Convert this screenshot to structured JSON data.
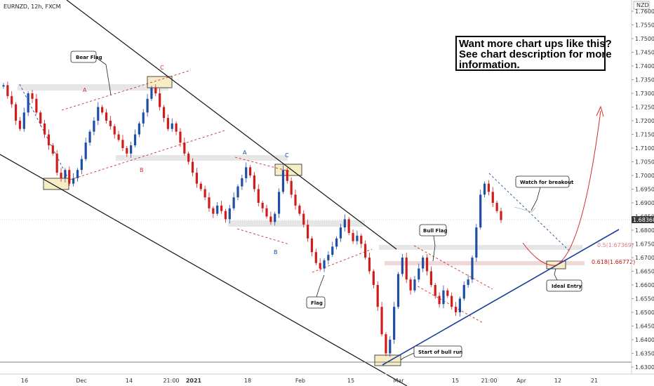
{
  "header": {
    "symbol_label": "EURNZD, 12h, FXCM",
    "currency_badge": "NZD"
  },
  "chart_data": {
    "type": "candlestick",
    "title": "EURNZD, 12h, FXCM",
    "y_axis": {
      "currency": "NZD",
      "ylim": [
        1.628,
        1.767
      ],
      "ticks": [
        1.63,
        1.635,
        1.64,
        1.645,
        1.65,
        1.655,
        1.66,
        1.665,
        1.67,
        1.675,
        1.68,
        1.685,
        1.69,
        1.695,
        1.7,
        1.705,
        1.71,
        1.715,
        1.72,
        1.725,
        1.73,
        1.735,
        1.74,
        1.745,
        1.75,
        1.755,
        1.76
      ]
    },
    "x_axis": {
      "tick_labels": [
        "16",
        "Dec",
        "14",
        "21:00",
        "2021",
        "18",
        "Feb",
        "15",
        "Mar",
        "15",
        "21:00",
        "Apr",
        "12",
        "21"
      ]
    },
    "last_price": "1.68368",
    "candles": [
      [
        1.7325,
        1.733
      ],
      [
        1.733,
        1.729
      ],
      [
        1.729,
        1.726
      ],
      [
        1.726,
        1.72
      ],
      [
        1.72,
        1.717
      ],
      [
        1.717,
        1.723
      ],
      [
        1.723,
        1.73
      ],
      [
        1.73,
        1.728
      ],
      [
        1.728,
        1.723
      ],
      [
        1.723,
        1.719
      ],
      [
        1.719,
        1.715
      ],
      [
        1.715,
        1.711
      ],
      [
        1.711,
        1.708
      ],
      [
        1.708,
        1.701
      ],
      [
        1.701,
        1.699
      ],
      [
        1.699,
        1.702
      ],
      [
        1.702,
        1.697
      ],
      [
        1.697,
        1.699
      ],
      [
        1.699,
        1.702
      ],
      [
        1.702,
        1.706
      ],
      [
        1.706,
        1.712
      ],
      [
        1.712,
        1.716
      ],
      [
        1.716,
        1.72
      ],
      [
        1.72,
        1.725
      ],
      [
        1.725,
        1.723
      ],
      [
        1.723,
        1.72
      ],
      [
        1.72,
        1.718
      ],
      [
        1.718,
        1.715
      ],
      [
        1.715,
        1.713
      ],
      [
        1.713,
        1.71
      ],
      [
        1.71,
        1.708
      ],
      [
        1.708,
        1.711
      ],
      [
        1.711,
        1.715
      ],
      [
        1.715,
        1.719
      ],
      [
        1.719,
        1.723
      ],
      [
        1.723,
        1.728
      ],
      [
        1.728,
        1.732
      ],
      [
        1.732,
        1.73
      ],
      [
        1.73,
        1.725
      ],
      [
        1.725,
        1.721
      ],
      [
        1.721,
        1.717
      ],
      [
        1.717,
        1.719
      ],
      [
        1.719,
        1.716
      ],
      [
        1.716,
        1.712
      ],
      [
        1.712,
        1.708
      ],
      [
        1.708,
        1.705
      ],
      [
        1.705,
        1.701
      ],
      [
        1.701,
        1.697
      ],
      [
        1.697,
        1.695
      ],
      [
        1.695,
        1.692
      ],
      [
        1.692,
        1.688
      ],
      [
        1.688,
        1.686
      ],
      [
        1.686,
        1.689
      ],
      [
        1.689,
        1.687
      ],
      [
        1.687,
        1.684
      ],
      [
        1.684,
        1.688
      ],
      [
        1.688,
        1.692
      ],
      [
        1.692,
        1.696
      ],
      [
        1.696,
        1.699
      ],
      [
        1.699,
        1.703
      ],
      [
        1.703,
        1.7
      ],
      [
        1.7,
        1.695
      ],
      [
        1.695,
        1.69
      ],
      [
        1.69,
        1.688
      ],
      [
        1.688,
        1.685
      ],
      [
        1.685,
        1.683
      ],
      [
        1.683,
        1.686
      ],
      [
        1.686,
        1.694
      ],
      [
        1.694,
        1.702
      ],
      [
        1.702,
        1.698
      ],
      [
        1.698,
        1.693
      ],
      [
        1.693,
        1.689
      ],
      [
        1.689,
        1.686
      ],
      [
        1.686,
        1.682
      ],
      [
        1.682,
        1.677
      ],
      [
        1.677,
        1.672
      ],
      [
        1.672,
        1.668
      ],
      [
        1.668,
        1.666
      ],
      [
        1.666,
        1.669
      ],
      [
        1.669,
        1.671
      ],
      [
        1.671,
        1.674
      ],
      [
        1.674,
        1.677
      ],
      [
        1.677,
        1.681
      ],
      [
        1.681,
        1.684
      ],
      [
        1.684,
        1.679
      ],
      [
        1.679,
        1.676
      ],
      [
        1.676,
        1.678
      ],
      [
        1.678,
        1.675
      ],
      [
        1.675,
        1.67
      ],
      [
        1.67,
        1.665
      ],
      [
        1.665,
        1.66
      ],
      [
        1.66,
        1.652
      ],
      [
        1.652,
        1.642
      ],
      [
        1.642,
        1.635
      ],
      [
        1.635,
        1.64
      ],
      [
        1.64,
        1.652
      ],
      [
        1.652,
        1.664
      ],
      [
        1.664,
        1.67
      ],
      [
        1.67,
        1.662
      ],
      [
        1.662,
        1.658
      ],
      [
        1.658,
        1.662
      ],
      [
        1.662,
        1.666
      ],
      [
        1.666,
        1.67
      ],
      [
        1.67,
        1.665
      ],
      [
        1.665,
        1.66
      ],
      [
        1.66,
        1.656
      ],
      [
        1.656,
        1.653
      ],
      [
        1.653,
        1.658
      ],
      [
        1.658,
        1.656
      ],
      [
        1.656,
        1.652
      ],
      [
        1.652,
        1.65
      ],
      [
        1.65,
        1.655
      ],
      [
        1.655,
        1.66
      ],
      [
        1.66,
        1.662
      ],
      [
        1.662,
        1.67
      ],
      [
        1.67,
        1.681
      ],
      [
        1.681,
        1.693
      ],
      [
        1.693,
        1.697
      ],
      [
        1.697,
        1.694
      ],
      [
        1.694,
        1.69
      ],
      [
        1.69,
        1.687
      ],
      [
        1.687,
        1.6837
      ]
    ],
    "annotations": {
      "callouts": [
        "Bear Flag",
        "Flag",
        "Bull Flag",
        "Watch for breakout",
        "Ideal Entry",
        "Start of bull run"
      ],
      "letters": [
        "A",
        "B",
        "C",
        "A",
        "B",
        "C"
      ],
      "fib_levels": [
        {
          "label": "0.5(1.67369)",
          "value": 1.67369
        },
        {
          "label": "0.618(1.66772)",
          "value": 1.66772
        }
      ],
      "message_lines": [
        "Want more chart ups like this?",
        "See chart description for more",
        "information."
      ]
    },
    "colors": {
      "up": "#1f4fa5",
      "down": "#d11c1c",
      "support": "#1a3f9c",
      "projection": "#d22b2b"
    }
  }
}
